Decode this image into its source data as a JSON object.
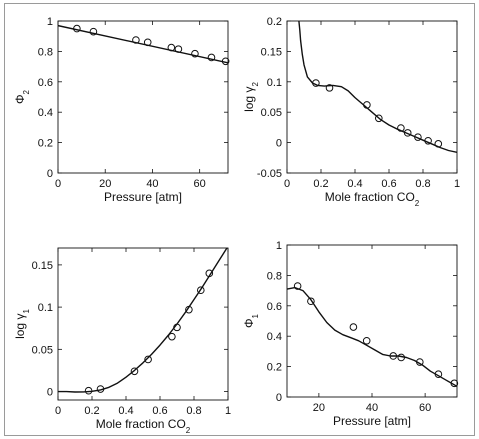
{
  "chart_data": [
    {
      "id": "phi2",
      "type": "scatter",
      "xlabel": "Pressure [atm]",
      "ylabel": {
        "main": "Φ",
        "sub": "2"
      },
      "xlim": [
        0,
        72
      ],
      "ylim": [
        0,
        1
      ],
      "xticks": [
        0,
        20,
        40,
        60
      ],
      "yticks": [
        0,
        0.2,
        0.4,
        0.6,
        0.8,
        1
      ],
      "ytick_labels": [
        "0",
        "0.2",
        "0.4",
        "0.6",
        "0.8",
        "1"
      ],
      "grid": false,
      "series": [
        {
          "kind": "points",
          "x": [
            8,
            15,
            33,
            38,
            48,
            51,
            58,
            65,
            71
          ],
          "y": [
            0.95,
            0.93,
            0.875,
            0.86,
            0.825,
            0.815,
            0.785,
            0.76,
            0.735
          ]
        },
        {
          "kind": "fit",
          "x": [
            0,
            72
          ],
          "y": [
            0.97,
            0.725
          ]
        }
      ]
    },
    {
      "id": "loggamma2",
      "type": "scatter",
      "xlabel": {
        "main": "Mole fraction CO",
        "sub": "2"
      },
      "ylabel": {
        "main": "log γ",
        "sub": "2"
      },
      "xlim": [
        0,
        1
      ],
      "ylim": [
        -0.05,
        0.2
      ],
      "xticks": [
        0,
        0.2,
        0.4,
        0.6,
        0.8,
        1
      ],
      "yticks": [
        -0.05,
        0,
        0.05,
        0.1,
        0.15,
        0.2
      ],
      "xtick_labels": [
        "0",
        "0.2",
        "0.4",
        "0.6",
        "0.8",
        "1"
      ],
      "ytick_labels": [
        "-0.05",
        "0",
        "0.05",
        "0.1",
        "0.15",
        "0.2"
      ],
      "grid": false,
      "series": [
        {
          "kind": "points",
          "x": [
            0.17,
            0.25,
            0.47,
            0.54,
            0.67,
            0.71,
            0.77,
            0.83,
            0.89
          ],
          "y": [
            0.098,
            0.09,
            0.062,
            0.04,
            0.024,
            0.016,
            0.009,
            0.003,
            -0.002
          ]
        },
        {
          "kind": "fit",
          "x": [
            0.07,
            0.075,
            0.08,
            0.09,
            0.1,
            0.12,
            0.15,
            0.18,
            0.22,
            0.27,
            0.32,
            0.36,
            0.4,
            0.45,
            0.5,
            0.55,
            0.6,
            0.65,
            0.7,
            0.75,
            0.8,
            0.85,
            0.9,
            0.95,
            1.0
          ],
          "y": [
            0.2,
            0.185,
            0.168,
            0.145,
            0.128,
            0.108,
            0.098,
            0.094,
            0.093,
            0.094,
            0.092,
            0.085,
            0.074,
            0.062,
            0.05,
            0.038,
            0.029,
            0.022,
            0.016,
            0.01,
            0.004,
            -0.002,
            -0.008,
            -0.013,
            -0.016
          ]
        }
      ]
    },
    {
      "id": "loggamma1",
      "type": "scatter",
      "xlabel": {
        "main": "Mole fraction CO",
        "sub": "2"
      },
      "ylabel": {
        "main": "log γ",
        "sub": "1"
      },
      "xlim": [
        0,
        1
      ],
      "ylim": [
        -0.01,
        0.17
      ],
      "xticks": [
        0,
        0.2,
        0.4,
        0.6,
        0.8,
        1
      ],
      "yticks": [
        0,
        0.05,
        0.1,
        0.15
      ],
      "xtick_labels": [
        "0",
        "0.2",
        "0.4",
        "0.6",
        "0.8",
        "1"
      ],
      "ytick_labels": [
        "0",
        "0.05",
        "0.1",
        "0.15"
      ],
      "grid": false,
      "series": [
        {
          "kind": "points",
          "x": [
            0.18,
            0.25,
            0.45,
            0.53,
            0.67,
            0.7,
            0.77,
            0.84,
            0.89
          ],
          "y": [
            0.001,
            0.003,
            0.024,
            0.038,
            0.065,
            0.076,
            0.097,
            0.12,
            0.14
          ]
        },
        {
          "kind": "fit",
          "x": [
            0,
            0.05,
            0.1,
            0.15,
            0.2,
            0.25,
            0.3,
            0.35,
            0.4,
            0.45,
            0.5,
            0.55,
            0.6,
            0.65,
            0.7,
            0.75,
            0.8,
            0.85,
            0.9,
            0.95,
            1.0
          ],
          "y": [
            0.0,
            0.0,
            -0.0005,
            -0.0004,
            0.0003,
            0.002,
            0.005,
            0.01,
            0.017,
            0.025,
            0.034,
            0.044,
            0.055,
            0.067,
            0.08,
            0.094,
            0.109,
            0.124,
            0.14,
            0.156,
            0.172
          ]
        }
      ]
    },
    {
      "id": "phi1",
      "type": "scatter",
      "xlabel": "Pressure [atm]",
      "ylabel": {
        "main": "Φ",
        "sub": "1"
      },
      "xlim": [
        8,
        72
      ],
      "ylim": [
        0,
        1
      ],
      "xticks": [
        20,
        40,
        60
      ],
      "yticks": [
        0,
        0.2,
        0.4,
        0.6,
        0.8,
        1
      ],
      "ytick_labels": [
        "0",
        "0.2",
        "0.4",
        "0.6",
        "0.8",
        "1"
      ],
      "grid": false,
      "series": [
        {
          "kind": "points",
          "x": [
            12,
            17,
            33,
            38,
            48,
            51,
            58,
            65,
            71
          ],
          "y": [
            0.73,
            0.63,
            0.46,
            0.37,
            0.27,
            0.26,
            0.23,
            0.15,
            0.09
          ]
        },
        {
          "kind": "fit",
          "x": [
            8,
            11,
            14,
            17,
            20,
            23,
            26,
            29,
            32,
            35,
            38,
            41,
            44,
            47,
            50,
            53,
            56,
            59,
            62,
            65,
            68,
            71,
            72
          ],
          "y": [
            0.71,
            0.72,
            0.7,
            0.64,
            0.56,
            0.49,
            0.44,
            0.41,
            0.39,
            0.37,
            0.34,
            0.31,
            0.28,
            0.27,
            0.27,
            0.26,
            0.24,
            0.21,
            0.17,
            0.14,
            0.11,
            0.08,
            0.07
          ]
        }
      ]
    }
  ]
}
